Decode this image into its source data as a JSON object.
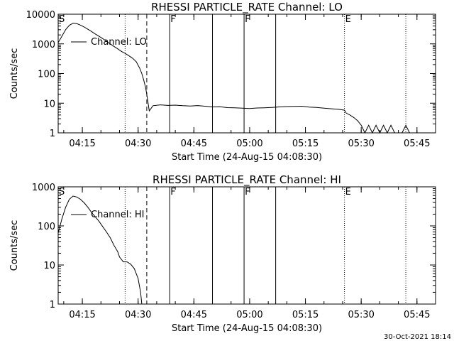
{
  "footer_timestamp": "30-Oct-2021 18:14",
  "chart_data": [
    {
      "type": "line",
      "title": "RHESSI PARTICLE_RATE Channel: LO",
      "xlabel": "Start Time (24-Aug-15 04:08:30)",
      "ylabel": "Counts/sec",
      "xlim": [
        "04:08:30",
        "05:50:00"
      ],
      "ylim": [
        1,
        10000
      ],
      "yscale": "log",
      "xticks": [
        "04:15",
        "04:30",
        "04:45",
        "05:00",
        "05:15",
        "05:30",
        "05:45"
      ],
      "yticks": [
        "1",
        "10",
        "100",
        "1000",
        "10000"
      ],
      "legend": {
        "entry": "Channel: LO",
        "placement": "top-left"
      },
      "series": [
        {
          "name": "Channel: LO",
          "x": [
            "04:08:30",
            "04:09:30",
            "04:10:30",
            "04:11:30",
            "04:12:30",
            "04:13:30",
            "04:14:30",
            "04:15:30",
            "04:16:30",
            "04:17:30",
            "04:18:30",
            "04:19:30",
            "04:20:30",
            "04:21:30",
            "04:22:30",
            "04:23:30",
            "04:24:30",
            "04:25:30",
            "04:26:30",
            "04:27:30",
            "04:28:30",
            "04:29:30",
            "04:30:30",
            "04:31:00",
            "04:31:30",
            "04:32:00",
            "04:32:20",
            "04:33:00",
            "04:34:00",
            "04:36:00",
            "04:38:00",
            "04:40:00",
            "04:42:00",
            "04:44:00",
            "04:46:00",
            "04:48:00",
            "04:50:00",
            "04:52:00",
            "04:54:00",
            "04:56:00",
            "04:58:00",
            "05:00:00",
            "05:02:00",
            "05:04:00",
            "05:06:00",
            "05:08:00",
            "05:10:00",
            "05:12:00",
            "05:14:00",
            "05:16:00",
            "05:18:00",
            "05:20:00",
            "05:22:00",
            "05:24:00",
            "05:25:30",
            "05:26:00",
            "05:27:00",
            "05:28:00",
            "05:29:00",
            "05:30:00",
            "05:31:00",
            "05:32:00",
            "05:33:00",
            "05:34:00",
            "05:35:00",
            "05:36:00",
            "05:37:00",
            "05:38:00",
            "05:39:00",
            "05:40:00",
            "05:41:00",
            "05:42:00",
            "05:43:00"
          ],
          "y": [
            1100,
            1800,
            3000,
            4200,
            5000,
            4800,
            4300,
            3700,
            3100,
            2600,
            2150,
            1800,
            1500,
            1230,
            1000,
            820,
            680,
            560,
            480,
            400,
            330,
            250,
            145,
            100,
            60,
            34,
            20,
            5.5,
            8.2,
            8.8,
            8.4,
            8.6,
            8.2,
            8.0,
            8.3,
            7.9,
            7.5,
            7.6,
            7.1,
            7.0,
            6.8,
            6.6,
            6.9,
            7.0,
            7.2,
            7.5,
            7.7,
            7.8,
            7.9,
            7.4,
            7.2,
            6.8,
            6.5,
            6.2,
            5.8,
            4.6,
            4.0,
            3.3,
            2.6,
            1.8,
            1,
            1.8,
            1,
            1.8,
            1,
            1.8,
            1,
            1.8,
            1,
            1,
            1,
            1.8,
            1
          ]
        }
      ],
      "markers": [
        {
          "time": "04:08:30",
          "style": "dotted",
          "label": "S"
        },
        {
          "time": "04:26:30",
          "style": "dotted",
          "label": ""
        },
        {
          "time": "04:32:20",
          "style": "dashed",
          "label": ""
        },
        {
          "time": "04:38:30",
          "style": "solid",
          "label": "F"
        },
        {
          "time": "04:50:00",
          "style": "solid",
          "label": ""
        },
        {
          "time": "04:58:30",
          "style": "solid",
          "label": "F"
        },
        {
          "time": "05:07:00",
          "style": "solid",
          "label": ""
        },
        {
          "time": "05:25:30",
          "style": "dotted",
          "label": "E"
        },
        {
          "time": "05:42:00",
          "style": "dotted",
          "label": ""
        }
      ]
    },
    {
      "type": "line",
      "title": "RHESSI PARTICLE_RATE Channel: HI",
      "xlabel": "Start Time (24-Aug-15 04:08:30)",
      "ylabel": "Counts/sec",
      "xlim": [
        "04:08:30",
        "05:50:00"
      ],
      "ylim": [
        1,
        1000
      ],
      "yscale": "log",
      "xticks": [
        "04:15",
        "04:30",
        "04:45",
        "05:00",
        "05:15",
        "05:30",
        "05:45"
      ],
      "yticks": [
        "1",
        "10",
        "100",
        "1000"
      ],
      "legend": {
        "entry": "Channel: HI",
        "placement": "top-left"
      },
      "series": [
        {
          "name": "Channel: HI",
          "x": [
            "04:08:30",
            "04:09:30",
            "04:10:30",
            "04:11:30",
            "04:12:30",
            "04:13:30",
            "04:14:30",
            "04:15:30",
            "04:16:30",
            "04:17:30",
            "04:18:30",
            "04:19:30",
            "04:20:30",
            "04:21:30",
            "04:22:30",
            "04:23:30",
            "04:24:30",
            "04:25:00",
            "04:25:30",
            "04:26:00",
            "04:27:00",
            "04:28:00",
            "04:29:00",
            "04:30:00",
            "04:30:40",
            "04:31:00"
          ],
          "y": [
            65,
            150,
            300,
            480,
            580,
            550,
            480,
            390,
            300,
            220,
            170,
            130,
            95,
            70,
            50,
            32,
            22,
            16,
            14,
            12,
            12,
            10.5,
            8,
            4.5,
            2,
            1
          ]
        }
      ],
      "markers": [
        {
          "time": "04:08:30",
          "style": "dotted",
          "label": "S"
        },
        {
          "time": "04:26:30",
          "style": "dotted",
          "label": ""
        },
        {
          "time": "04:32:20",
          "style": "dashed",
          "label": ""
        },
        {
          "time": "04:38:30",
          "style": "solid",
          "label": "F"
        },
        {
          "time": "04:50:00",
          "style": "solid",
          "label": ""
        },
        {
          "time": "04:58:30",
          "style": "solid",
          "label": "F"
        },
        {
          "time": "05:07:00",
          "style": "solid",
          "label": ""
        },
        {
          "time": "05:25:30",
          "style": "dotted",
          "label": "E"
        },
        {
          "time": "05:42:00",
          "style": "dotted",
          "label": ""
        }
      ]
    }
  ]
}
